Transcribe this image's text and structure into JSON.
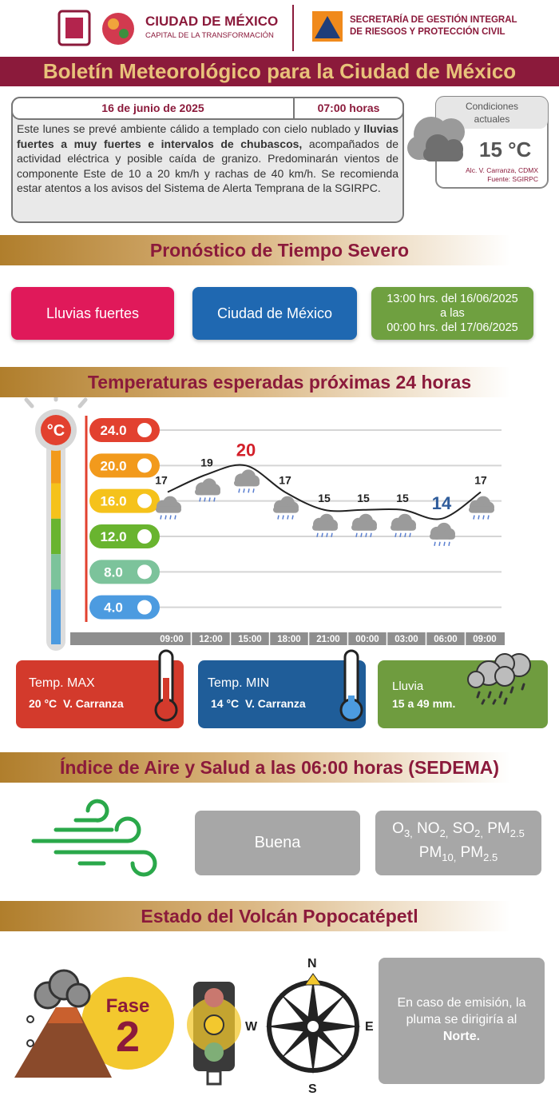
{
  "header": {
    "logo_title": "CIUDAD DE MÉXICO",
    "logo_subtitle": "CAPITAL DE LA TRANSFORMACIÓN",
    "agency_line1": "SECRETARÍA DE GESTIÓN INTEGRAL",
    "agency_line2": "DE RIESGOS Y PROTECCIÓN CIVIL"
  },
  "title": "Boletín Meteorológico para la Ciudad de México",
  "bulletin": {
    "date": "16 de junio de 2025",
    "time": "07:00 horas",
    "text_start": "Este lunes se prevé ambiente cálido a templado con cielo nublado y ",
    "text_bold": "lluvias fuertes a muy fuertes e intervalos de chubascos,",
    "text_end": " acompañados de actividad eléctrica y posible caída de granizo. Predominarán vientos de componente Este de 10 a 20 km/h y rachas de 40 km/h. Se recomienda estar atentos a los avisos del Sistema de Alerta Temprana de la SGIRPC."
  },
  "current": {
    "label_line1": "Condiciones",
    "label_line2": "actuales",
    "temperature": "15 °C",
    "location": "Alc. V. Carranza, CDMX",
    "source": "Fuente: SGIRPC"
  },
  "severe": {
    "heading": "Pronóstico de Tiempo Severo",
    "phenomenon": "Lluvias fuertes",
    "area": "Ciudad de México",
    "period": [
      "13:00 hrs. del 16/06/2025",
      "a las",
      "00:00 hrs. del 17/06/2025"
    ]
  },
  "temperatures": {
    "heading": "Temperaturas esperadas próximas 24 horas",
    "unit": "°C",
    "chart": {
      "type": "line",
      "x": [
        "09:00",
        "12:00",
        "15:00",
        "18:00",
        "21:00",
        "00:00",
        "03:00",
        "06:00",
        "09:00"
      ],
      "values": [
        17,
        19,
        20,
        17,
        15,
        15,
        15,
        14,
        17
      ],
      "color": "#222222",
      "ylim": [
        0,
        24
      ],
      "yticks": [
        {
          "value": 24,
          "label": "24.0"
        },
        {
          "value": 20,
          "label": "20.0"
        },
        {
          "value": 16,
          "label": "16.0"
        },
        {
          "value": 12,
          "label": "12.0"
        },
        {
          "value": 8,
          "label": "8.0"
        },
        {
          "value": 4,
          "label": "4.0"
        }
      ],
      "tick_colors": [
        "#e2412f",
        "#f29a1c",
        "#f5c21b",
        "#69b42f",
        "#7cc39b",
        "#4c9be0"
      ],
      "grid": true
    },
    "max_label": "Temp. MAX",
    "max_value": "20 °C  V. Carranza",
    "min_label": "Temp. MIN",
    "min_value": "14 °C  V. Carranza",
    "rain_label": "Lluvia",
    "rain_value": "15 a 49 mm."
  },
  "air": {
    "heading": "Índice de Aire y Salud a las 06:00 horas (SEDEMA)",
    "quality": "Buena",
    "pollutants_line1": [
      {
        "base": "O",
        "sub": "3,"
      },
      {
        "base": " NO",
        "sub": "2,"
      },
      {
        "base": " SO",
        "sub": "2,"
      },
      {
        "base": " PM",
        "sub": "2.5"
      }
    ],
    "pollutants_line2": [
      {
        "base": "PM",
        "sub": "10,"
      },
      {
        "base": " PM",
        "sub": "2.5"
      }
    ]
  },
  "volcano": {
    "heading": "Estado del Volcán Popocatépetl",
    "phase_label": "Fase",
    "phase_number": "2",
    "compass": {
      "north": "N",
      "west": "W",
      "east": "E",
      "south": "S"
    },
    "message_start": "En caso de emisión, la pluma se dirigiría al ",
    "message_bold": "Norte."
  }
}
